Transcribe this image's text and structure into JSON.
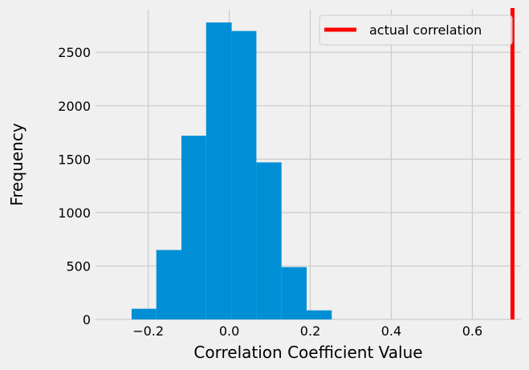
{
  "chart_data": {
    "type": "bar",
    "xlabel": "Correlation Coefficient Value",
    "ylabel": "Frequency",
    "xlim": [
      -0.33,
      0.72
    ],
    "ylim": [
      0,
      2900
    ],
    "grid": true,
    "bar_color": "#008fd5",
    "x_ticks": [
      -0.2,
      0.0,
      0.2,
      0.4,
      0.6
    ],
    "x_tick_labels": [
      "−0.2",
      "0.0",
      "0.2",
      "0.4",
      "0.6"
    ],
    "y_ticks": [
      0,
      500,
      1000,
      1500,
      2000,
      2500
    ],
    "y_tick_labels": [
      "0",
      "500",
      "1000",
      "1500",
      "2000",
      "2500"
    ],
    "bins": [
      {
        "x0": -0.241,
        "x1": -0.18,
        "count": 100
      },
      {
        "x0": -0.18,
        "x1": -0.118,
        "count": 650
      },
      {
        "x0": -0.118,
        "x1": -0.057,
        "count": 1720
      },
      {
        "x0": -0.057,
        "x1": 0.006,
        "count": 2780
      },
      {
        "x0": 0.006,
        "x1": 0.067,
        "count": 2700
      },
      {
        "x0": 0.067,
        "x1": 0.129,
        "count": 1470
      },
      {
        "x0": 0.129,
        "x1": 0.191,
        "count": 490
      },
      {
        "x0": 0.191,
        "x1": 0.253,
        "count": 85
      }
    ],
    "reference_line": {
      "x": 0.699,
      "label": "actual correlation",
      "color": "#ff0000"
    },
    "legend": {
      "position": "top-right",
      "entries": [
        "actual correlation"
      ]
    }
  }
}
